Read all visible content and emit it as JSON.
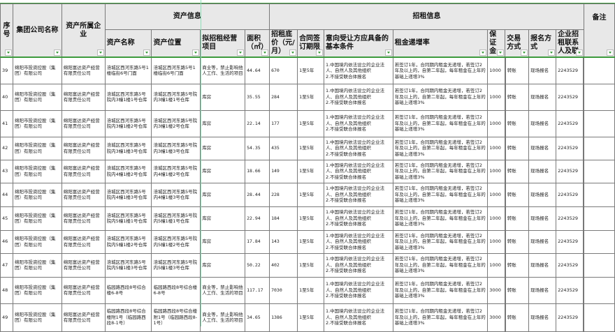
{
  "header": {
    "group1": "资产信息",
    "group2": "招租信息",
    "cols": [
      "序号",
      "集团公司名称",
      "资产所属企业",
      "资产名称",
      "资产位置",
      "拟招租经营项目",
      "面积（㎡）",
      "招租底价（元/月）",
      "合同签订期限",
      "意向受让方应具备的基本条件",
      "租金递增率",
      "保证金",
      "交易方式",
      "报名方式",
      "企业招租联系人及联",
      "备注"
    ]
  },
  "rows": [
    [
      "39",
      "绵阳市投资控股（集团）有限公司",
      "绵阳富达资产经营有限责任公司",
      "涪城区西河东路5号1楼临街6号门面",
      "涪城区西河东路5号1楼临街6号门面",
      "商业等，禁止影响他人工作、生活的项目",
      "44.64",
      "670",
      "1至5年",
      "1.中国境内依法设立的企业法人、自然人及其他组织\n2.不接受联合体报名",
      "若签订1年，合同期内租金无递增，若签订2年及以上的，自第二年起，每年租金在上年的基础上递增3%",
      "1000",
      "转账",
      "现场报名",
      "2243529",
      ""
    ],
    [
      "40",
      "绵阳市投资控股（集团）有限公司",
      "绵阳富达资产经营有限责任公司",
      "涪城区西河东路5号院内3幢1楼1号仓库",
      "涪城区西河东路5号院内3幢1楼1号仓库",
      "库房",
      "35.55",
      "284",
      "1至5年",
      "1.中国境内依法设立的企业法人、自然人及其他组织\n2.不接受联合体报名",
      "若签订1年，合同期内租金无递增，若签订2年及以上的，自第二年起，每年租金在上年的基础上递增3%",
      "1000",
      "转账",
      "现场报名",
      "2243529",
      ""
    ],
    [
      "41",
      "绵阳市投资控股（集团）有限公司",
      "绵阳富达资产经营有限责任公司",
      "涪城区西河东路5号院内3幢1楼2号仓库",
      "涪城区西河东路5号院内3幢1楼2号仓库",
      "库房",
      "22.14",
      "177",
      "1至5年",
      "1.中国境内依法设立的企业法人、自然人及其他组织\n2.不接受联合体报名",
      "若签订1年，合同期内租金无递增，若签订2年及以上的，自第二年起，每年租金在上年的基础上递增3%",
      "1000",
      "转账",
      "现场报名",
      "2243529",
      ""
    ],
    [
      "42",
      "绵阳市投资控股（集团）有限公司",
      "绵阳富达资产经营有限责任公司",
      "涪城区西河东路5号院内3幢1楼3号仓库",
      "涪城区西河东路5号院内3幢1楼3号仓库",
      "库房",
      "54.35",
      "435",
      "1至5年",
      "1.中国境内依法设立的企业法人、自然人及其他组织\n2.不接受联合体报名",
      "若签订1年，合同期内租金无递增，若签订2年及以上的，自第二年起，每年租金在上年的基础上递增3%",
      "1000",
      "转账",
      "现场报名",
      "2243529",
      ""
    ],
    [
      "43",
      "绵阳市投资控股（集团）有限公司",
      "绵阳富达资产经营有限责任公司",
      "涪城区西河东路5号院内4幢1楼2号仓库",
      "涪城区西河东路5号院内4幢1楼2号仓库",
      "库房",
      "18.66",
      "149",
      "1至5年",
      "1.中国境内依法设立的企业法人、自然人及其他组织\n2.不接受联合体报名",
      "若签订1年，合同期内租金无递增，若签订2年及以上的，自第二年起，每年租金在上年的基础上递增3%",
      "1000",
      "转账",
      "现场报名",
      "2243529",
      ""
    ],
    [
      "44",
      "绵阳市投资控股（集团）有限公司",
      "绵阳富达资产经营有限责任公司",
      "涪城区西河东路5号院内4幢1楼3号仓库",
      "涪城区西河东路5号院内4幢1楼3号仓库",
      "库房",
      "28.44",
      "228",
      "1至5年",
      "1.中国境内依法设立的企业法人、自然人及其他组织\n2.不接受联合体报名",
      "若签订1年，合同期内租金无递增，若签订2年及以上的，自第二年起，每年租金在上年的基础上递增3%",
      "1000",
      "转账",
      "现场报名",
      "2243529",
      ""
    ],
    [
      "45",
      "绵阳市投资控股（集团）有限公司",
      "绵阳富达资产经营有限责任公司",
      "涪城区西河东路5号院内5幢1楼1号仓库",
      "涪城区西河东路5号院内5幢1楼1号仓库",
      "库房",
      "22.94",
      "184",
      "1至5年",
      "1.中国境内依法设立的企业法人、自然人及其他组织\n2.不接受联合体报名",
      "若签订1年，合同期内租金无递增，若签订2年及以上的，自第二年起，每年租金在上年的基础上递增3%",
      "1000",
      "转账",
      "现场报名",
      "2243529",
      ""
    ],
    [
      "46",
      "绵阳市投资控股（集团）有限公司",
      "绵阳富达资产经营有限责任公司",
      "涪城区西河东路5号院内5幢1楼2号仓库",
      "涪城区西河东路5号院内5幢1楼2号仓库",
      "库房",
      "17.84",
      "143",
      "1至5年",
      "1.中国境内依法设立的企业法人、自然人及其他组织\n2.不接受联合体报名",
      "若签订1年，合同期内租金无递增，若签订2年及以上的，自第二年起，每年租金在上年的基础上递增3%",
      "1000",
      "转账",
      "现场报名",
      "2243529",
      ""
    ],
    [
      "47",
      "绵阳市投资控股（集团）有限公司",
      "绵阳富达资产经营有限责任公司",
      "涪城区西河东路5号院内5幢1楼3号仓库",
      "涪城区西河东路5号院内5幢1楼3号仓库",
      "库房",
      "50.22",
      "402",
      "1至5年",
      "1.中国境内依法设立的企业法人、自然人及其他组织\n2.不接受联合体报名",
      "若签订1年，合同期内租金无递增，若签订2年及以上的，自第二年起，每年租金在上年的基础上递增3%",
      "1000",
      "转账",
      "现场报名",
      "2243529",
      ""
    ],
    [
      "48",
      "绵阳市投资控股（集团）有限公司",
      "绵阳富达资产经营有限责任公司",
      "临园路西段8号综合楼6-8号",
      "临园路西段8号综合楼6-8号",
      "商业等，禁止影响他人工作、生活的项目",
      "117.17",
      "7030",
      "1至5年",
      "1.中国境内依法设立的企业法人、自然人及其他组织\n2.不接受联合体报名",
      "若签订1年，合同期内租金无递增，若签订2年及以上的，自第二年起，每年租金在上年的基础上递增3%",
      "3000",
      "转账",
      "现场报名",
      "2243529",
      ""
    ],
    [
      "49",
      "绵阳市投资控股（集团）有限公司",
      "绵阳富达资产经营有限责任公司",
      "临园路西段8号综合楼附1号（临园路西段8-1号）",
      "临园路西段8号综合楼附1号（临园路西段8-1号）",
      "商业等，禁止影响他人工作、生活的项目",
      "34.65",
      "1386",
      "1至5年",
      "1.中国境内依法设立的企业法人、自然人及其他组织\n2.不接受联合体报名",
      "若签订1年，合同期内租金无递增，若签订2年及以上的，自第二年起，每年租金在上年的基础上递增3%",
      "3000",
      "转账",
      "现场报名",
      "2243529",
      ""
    ]
  ],
  "colors": {
    "header_bg": "#e8e8e8",
    "accent_green": "#3c9a3c",
    "freeze_line": "#8fe0b8"
  },
  "icons": {
    "filter": "filter-dropdown-icon"
  }
}
